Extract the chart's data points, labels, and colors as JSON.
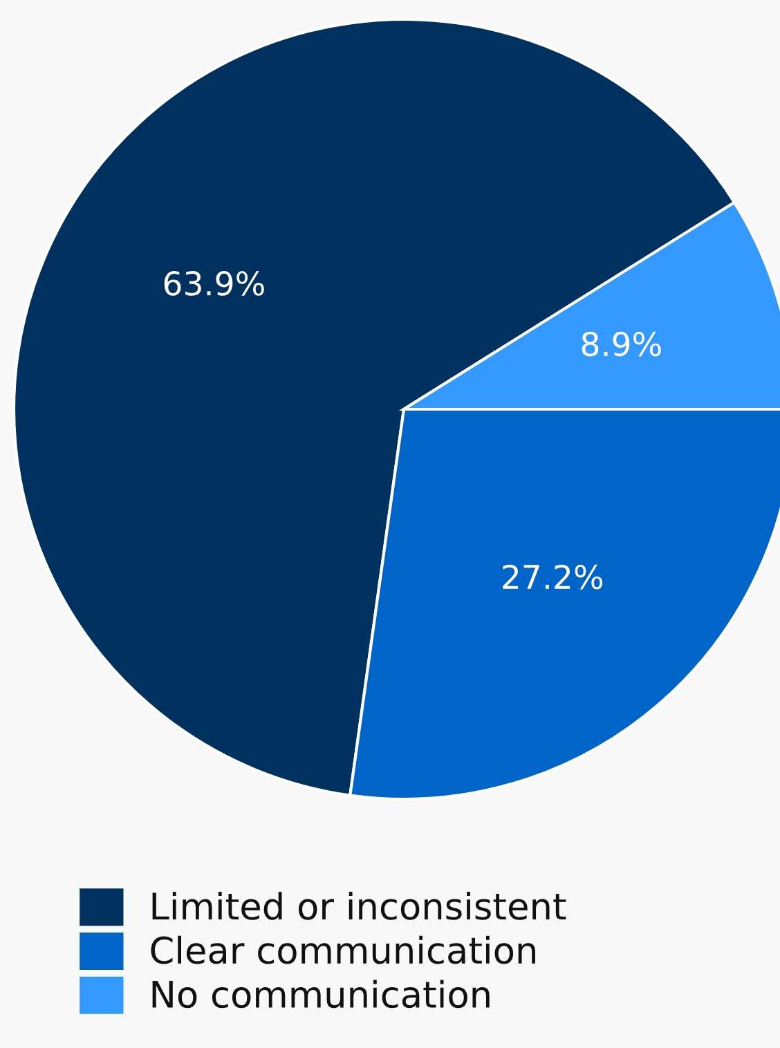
{
  "chart_data": {
    "type": "pie",
    "categories": [
      "Limited or inconsistent",
      "Clear communication",
      "No communication"
    ],
    "values": [
      63.9,
      27.2,
      8.9
    ],
    "colors": [
      "#00315f",
      "#0064c8",
      "#3399ff"
    ],
    "value_labels": [
      "63.9%",
      "27.2%",
      "8.9%"
    ],
    "legend": "bottom left"
  }
}
